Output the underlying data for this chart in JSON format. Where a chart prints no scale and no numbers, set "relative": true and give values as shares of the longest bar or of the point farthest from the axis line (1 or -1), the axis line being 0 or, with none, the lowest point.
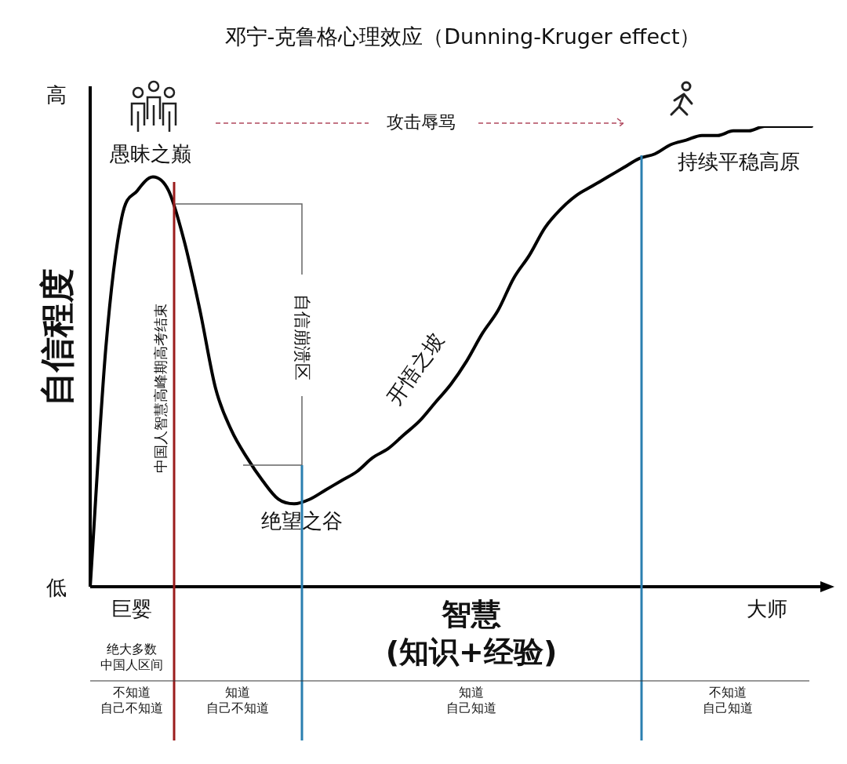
{
  "chart_data": {
    "type": "line",
    "title": "邓宁-克鲁格心理效应（Dunning-Kruger effect）",
    "xlabel": "智慧\n(知识+经验)",
    "ylabel": "自信程度",
    "relative": true,
    "marker": "none",
    "categories": [
      null,
      null,
      null,
      null,
      null,
      null,
      null,
      null,
      null,
      null,
      null,
      null,
      null,
      null,
      null,
      null,
      null,
      null,
      null,
      null,
      null,
      null,
      null,
      null,
      null,
      null,
      null,
      null,
      null,
      null,
      null,
      null,
      null,
      null,
      null,
      null,
      null,
      null,
      null,
      null,
      null,
      null,
      null,
      null,
      null,
      null,
      null
    ],
    "series": [
      {
        "color": "#000000",
        "values": [
          0,
          0.52,
          0.8,
          0.86,
          0.89,
          0.86,
          0.75,
          0.6,
          0.43,
          0.34,
          0.28,
          0.23,
          0.19,
          0.18,
          0.19,
          0.21,
          0.23,
          0.25,
          0.28,
          0.3,
          0.33,
          0.36,
          0.4,
          0.44,
          0.49,
          0.55,
          0.6,
          0.67,
          0.72,
          0.78,
          0.82,
          0.85,
          0.87,
          0.89,
          0.91,
          0.93,
          0.94,
          0.96,
          0.97,
          0.98,
          0.98,
          0.99,
          0.99,
          1,
          1,
          1,
          1
        ]
      }
    ],
    "annotations": [
      "高",
      "低",
      "大师",
      "巨婴",
      "愚昧之巅",
      "绝望之谷",
      "开悟之坡",
      "持续平稳高原",
      "攻击辱骂",
      "自信崩溃区",
      "绝大多数中国人区间",
      "不知道自己不知道",
      "知道自己不知道",
      "知道自己知道",
      "不知道自己知道",
      "中国人智慧高峰期高考结束"
    ]
  }
}
